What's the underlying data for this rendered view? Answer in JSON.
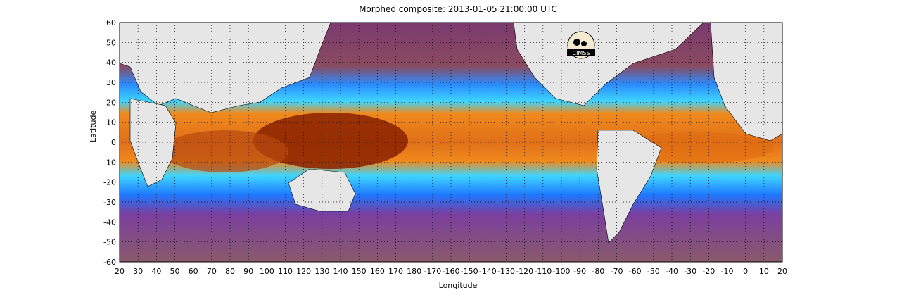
{
  "title": "Morphed composite: 2013-01-05 21:00:00 UTC",
  "xlabel": "Longitude",
  "ylabel": "Latitude",
  "x_ticks": [
    "20",
    "30",
    "40",
    "50",
    "60",
    "70",
    "80",
    "90",
    "100",
    "110",
    "120",
    "130",
    "140",
    "150",
    "160",
    "170",
    "180",
    "-170",
    "-160",
    "-150",
    "-140",
    "-130",
    "-120",
    "-110",
    "-100",
    "-90",
    "-80",
    "-70",
    "-60",
    "-50",
    "-40",
    "-30",
    "-20",
    "-10",
    "0",
    "10",
    "20"
  ],
  "y_ticks": [
    "60",
    "50",
    "40",
    "30",
    "20",
    "10",
    "0",
    "-10",
    "-20",
    "-30",
    "-40",
    "-50",
    "-60"
  ],
  "logo_text": "CIMSS",
  "colors": {
    "land": "#e6e6e6",
    "dry": "#7a4a78",
    "very_dry": "#5a2a8a",
    "moist_blue": "#1e90ff",
    "cyan": "#3fd6ff",
    "green": "#6fe08a",
    "yellow": "#f3e24a",
    "orange": "#f08a1c",
    "dark_red": "#8a2200"
  }
}
